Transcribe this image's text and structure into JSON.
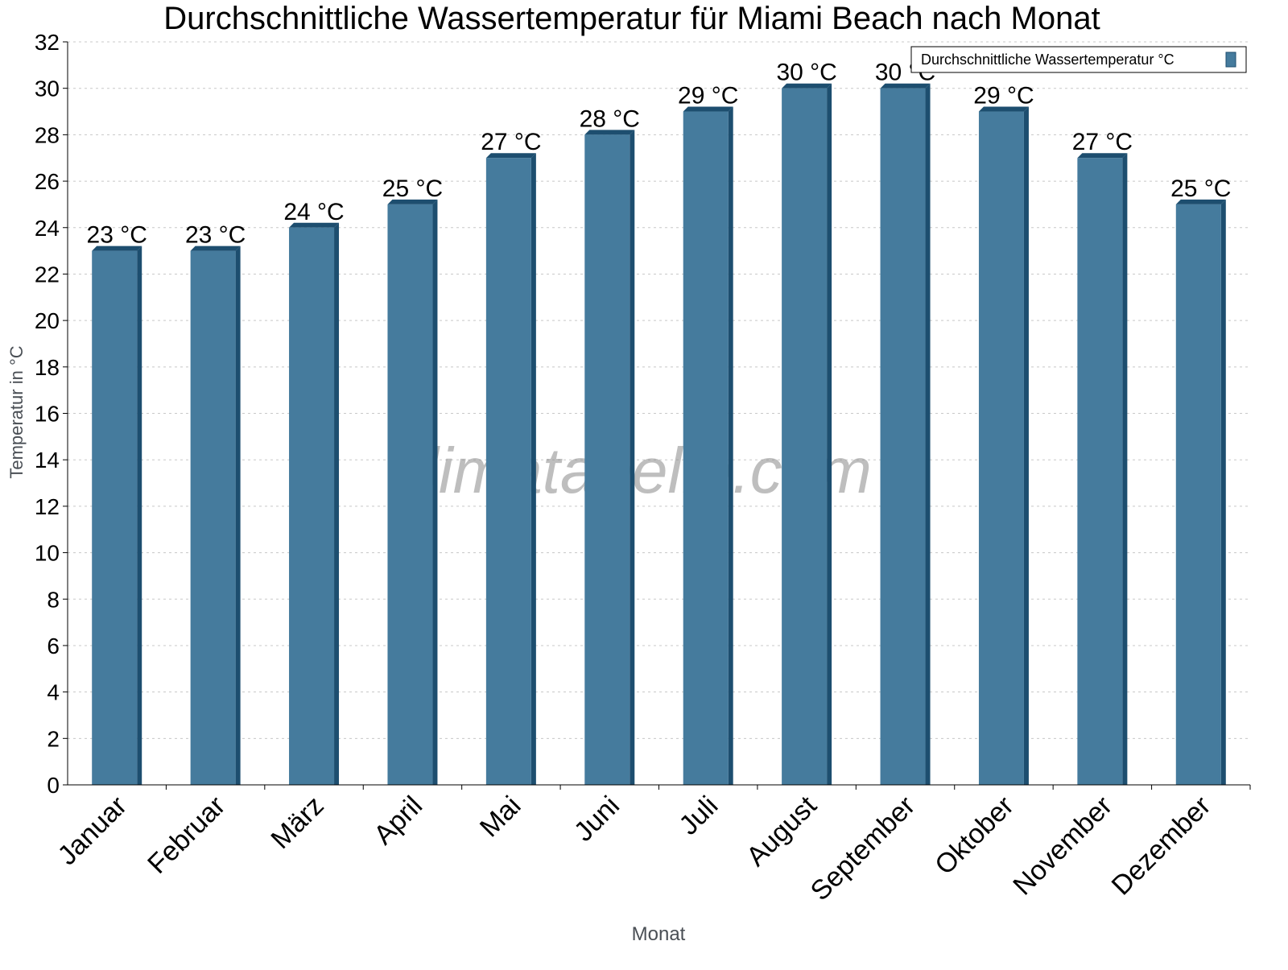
{
  "chart_data": {
    "type": "bar",
    "title": "Durchschnittliche Wassertemperatur für Miami Beach nach Monat",
    "xlabel": "Monat",
    "ylabel": "Temperatur in °C",
    "categories": [
      "Januar",
      "Februar",
      "März",
      "April",
      "Mai",
      "Juni",
      "Juli",
      "August",
      "September",
      "Oktober",
      "November",
      "Dezember"
    ],
    "series": [
      {
        "name": "Durchschnittliche Wassertemperatur °C",
        "values": [
          23,
          23,
          24,
          25,
          27,
          28,
          29,
          30,
          30,
          29,
          27,
          25
        ]
      }
    ],
    "data_labels": [
      "23 °C",
      "23 °C",
      "24 °C",
      "25 °C",
      "27 °C",
      "28 °C",
      "29 °C",
      "30 °C",
      "30 °C",
      "29 °C",
      "27 °C",
      "25 °C"
    ],
    "ylim": [
      0,
      32
    ],
    "yticks": [
      0,
      2,
      4,
      6,
      8,
      10,
      12,
      14,
      16,
      18,
      20,
      22,
      24,
      26,
      28,
      30,
      32
    ],
    "grid": true,
    "legend_position": "top-right",
    "colors": {
      "bar": "#457b9d",
      "bar_side": "#1d4e6f",
      "grid": "#c8c8c8"
    },
    "watermark": "klimatabelle.com"
  }
}
